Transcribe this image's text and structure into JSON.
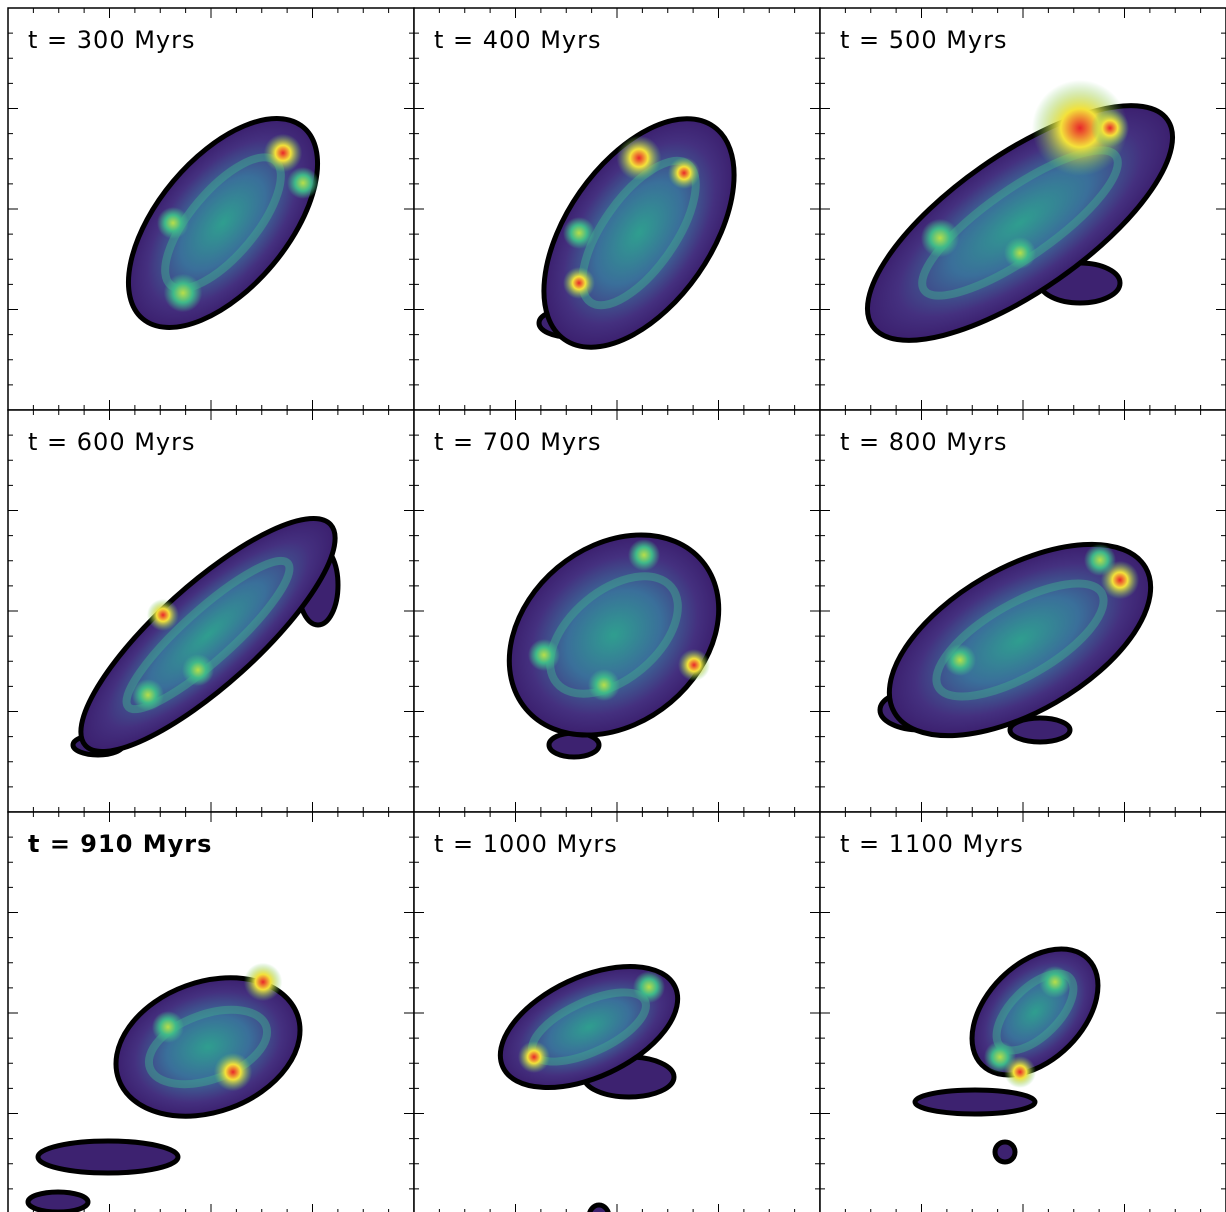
{
  "panels": [
    {
      "label": "t = 300 Myrs"
    },
    {
      "label": "t = 400 Myrs"
    },
    {
      "label": "t = 500 Myrs"
    },
    {
      "label": "t = 600 Myrs"
    },
    {
      "label": "t = 700 Myrs"
    },
    {
      "label": "t = 800 Myrs"
    },
    {
      "label": "t = 910 Myrs"
    },
    {
      "label": "t = 1000 Myrs"
    },
    {
      "label": "t = 1100 Myrs"
    }
  ]
}
